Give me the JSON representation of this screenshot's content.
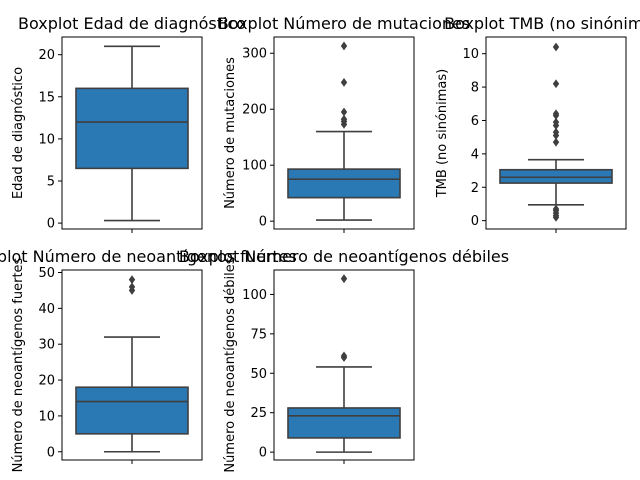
{
  "colors": {
    "box_fill": "#2a78b4",
    "line": "#3f3f3f",
    "flier": "#3f3f3f",
    "axis": "#000000"
  },
  "chart_data": [
    {
      "type": "boxplot",
      "title": "Boxplot Edad de diagnóstico",
      "ylabel": "Edad de diagnóstico",
      "ylim": [
        -0.7,
        22.1
      ],
      "yticks": [
        0,
        5,
        10,
        15,
        20
      ],
      "stats": {
        "whislo": 0.3,
        "q1": 6.5,
        "median": 12,
        "q3": 16,
        "whishi": 21
      },
      "fliers": []
    },
    {
      "type": "boxplot",
      "title": "Boxplot Número de mutaciones",
      "ylabel": "Número de mutaciones",
      "ylim": [
        -14,
        329
      ],
      "yticks": [
        0,
        100,
        200,
        300
      ],
      "stats": {
        "whislo": 2,
        "q1": 42,
        "median": 75,
        "q3": 93,
        "whishi": 160
      },
      "fliers": [
        173,
        178,
        182,
        195,
        248,
        313
      ]
    },
    {
      "type": "boxplot",
      "title": "Boxplot TMB (no sinónimas)",
      "ylabel": "TMB (no sinónimas)",
      "ylim": [
        -0.5,
        11.0
      ],
      "yticks": [
        0,
        2,
        4,
        6,
        8,
        10
      ],
      "stats": {
        "whislo": 0.95,
        "q1": 2.25,
        "median": 2.6,
        "q3": 3.05,
        "whishi": 3.65
      },
      "fliers": [
        0.2,
        0.3,
        0.45,
        0.6,
        0.7,
        4.7,
        5.1,
        5.3,
        5.7,
        5.9,
        6.3,
        6.4,
        8.2,
        10.4
      ]
    },
    {
      "type": "boxplot",
      "title": "Boxplot Número de neoantígenos fuertes",
      "ylabel": "Número de neoantígenos fuertes",
      "ylim": [
        -2.3,
        50.7
      ],
      "yticks": [
        0,
        10,
        20,
        30,
        40,
        50
      ],
      "stats": {
        "whislo": 0,
        "q1": 5,
        "median": 14,
        "q3": 18,
        "whishi": 32
      },
      "fliers": [
        45,
        46,
        48
      ]
    },
    {
      "type": "boxplot",
      "title": "Boxplot Número de neoantígenos débiles",
      "ylabel": "Número de neoantígenos débiles",
      "ylim": [
        -5,
        115.5
      ],
      "yticks": [
        0,
        25,
        50,
        75,
        100
      ],
      "stats": {
        "whislo": 0,
        "q1": 9,
        "median": 23,
        "q3": 28,
        "whishi": 54
      },
      "fliers": [
        60,
        61,
        110
      ]
    }
  ]
}
